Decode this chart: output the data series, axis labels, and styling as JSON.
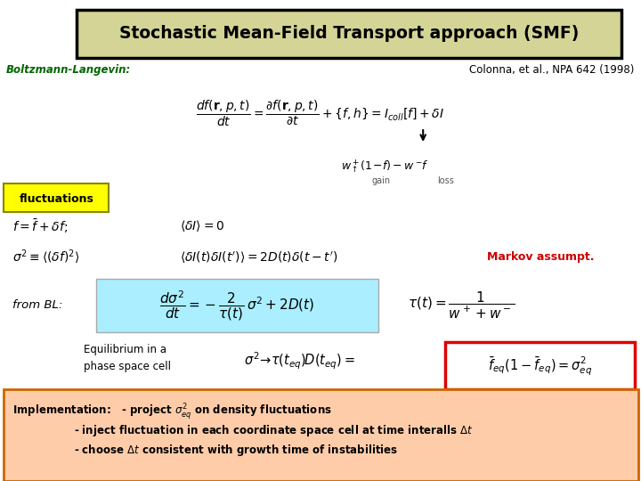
{
  "background_color": "#ffffff",
  "title_text": "Stochastic Mean-Field Transport approach (SMF)",
  "title_bg_color": "#d4d496",
  "title_border_color": "#000000",
  "boltzmann_label": "Boltzmann-Langevin:",
  "boltzmann_color": "#006600",
  "citation": "Colonna, et al., NPA 642 (1998)",
  "citation_color": "#000000",
  "fluctuations_label": "fluctuations",
  "fluctuations_bg": "#ffff00",
  "fluctuations_border": "#888800",
  "markov_text": "Markov assumpt.",
  "markov_color": "#cc0000",
  "from_bl_label": "from BL:",
  "eq_box1_color": "#aaeeff",
  "eq_box2_color": "#dd0000",
  "impl_bg": "#ffccaa",
  "impl_border": "#cc6600",
  "gain_loss_color": "#555555",
  "arrow_color": "#000000"
}
